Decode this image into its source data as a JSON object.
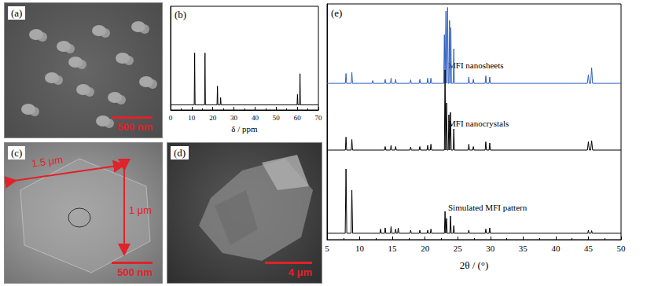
{
  "chart_data": [
    {
      "type": "line",
      "annotations": [
        "(b)"
      ],
      "x_label": "δ / ppm",
      "xlim": [
        0,
        70
      ],
      "xticks": [
        0,
        10,
        20,
        30,
        40,
        50,
        60,
        70
      ],
      "ylim": [
        0,
        1
      ],
      "tick_labels": "x",
      "grid": false,
      "series": [
        {
          "color": "#000000",
          "x": [
            0,
            11.2,
            11.4,
            11.6,
            16.1,
            16.3,
            16.5,
            22.0,
            22.2,
            22.4,
            23.5,
            23.7,
            23.9,
            59.9,
            60.1,
            60.3,
            61.1,
            61.3,
            61.5,
            70
          ],
          "values": [
            0.05,
            0.05,
            0.55,
            0.05,
            0.05,
            0.55,
            0.05,
            0.05,
            0.23,
            0.05,
            0.05,
            0.12,
            0.05,
            0.05,
            0.15,
            0.05,
            0.05,
            0.35,
            0.05,
            0.05
          ]
        }
      ]
    },
    {
      "type": "line",
      "annotations": [
        "(e)"
      ],
      "x_label": "2θ / (°)",
      "xlim": [
        5,
        50
      ],
      "xticks": [
        5,
        10,
        15,
        20,
        25,
        30,
        35,
        40,
        45,
        50
      ],
      "ylim": [
        0,
        100
      ],
      "tick_labels": "x",
      "grid": false,
      "series": [
        {
          "name": "MFI nanosheets",
          "color": "#2e5fbf",
          "x": [
            5,
            7.8,
            7.9,
            8.0,
            8.7,
            8.8,
            8.9,
            11.9,
            12.0,
            12.1,
            13.8,
            13.9,
            14.0,
            14.7,
            14.8,
            14.9,
            15.4,
            15.5,
            15.6,
            17.7,
            17.8,
            17.9,
            19.1,
            19.2,
            19.3,
            20.3,
            20.4,
            20.5,
            20.8,
            20.9,
            21.0,
            22.86,
            22.96,
            23.06,
            23.1,
            23.2,
            23.3,
            23.35,
            23.45,
            23.55,
            23.65,
            23.75,
            23.85,
            23.86,
            23.95,
            24.04,
            24.3,
            24.4,
            24.5,
            26.6,
            26.7,
            26.8,
            27.3,
            27.4,
            27.5,
            29.2,
            29.3,
            29.4,
            29.8,
            29.9,
            30.0,
            44.85,
            45.0,
            45.15,
            45.35,
            45.5,
            45.65,
            50
          ],
          "values": [
            66.3,
            66.3,
            70.5,
            66.3,
            66.3,
            71,
            66.3,
            66.3,
            67.5,
            66.3,
            66.3,
            68,
            66.3,
            66.3,
            68.5,
            66.3,
            66.3,
            68,
            66.3,
            66.3,
            67.8,
            66.3,
            66.3,
            68,
            66.3,
            66.3,
            68.5,
            66.3,
            66.3,
            68.5,
            66.3,
            66.3,
            87,
            66.3,
            66.3,
            97,
            66.3,
            66.3,
            98.5,
            66.3,
            66.3,
            93,
            66.3,
            66.3,
            90,
            66.3,
            66.3,
            81,
            66.3,
            66.3,
            69,
            66.3,
            66.3,
            68,
            66.3,
            66.3,
            69.5,
            66.3,
            66.3,
            69,
            66.3,
            66.3,
            70,
            66.3,
            66.3,
            73,
            66.3,
            66.3
          ]
        },
        {
          "name": "MFI nanocrystals",
          "color": "#000000",
          "x": [
            5,
            7.8,
            7.9,
            8.0,
            8.7,
            8.8,
            8.9,
            13.8,
            13.9,
            14.0,
            14.7,
            14.8,
            14.9,
            15.4,
            15.5,
            15.6,
            17.7,
            17.8,
            17.9,
            19.1,
            19.2,
            19.3,
            20.3,
            20.4,
            20.5,
            20.8,
            20.9,
            21.0,
            22.96,
            23.06,
            23.16,
            23.2,
            23.3,
            23.4,
            23.55,
            23.65,
            23.75,
            23.8,
            23.9,
            24.0,
            24.3,
            24.4,
            24.5,
            26.6,
            26.7,
            26.8,
            27.3,
            27.4,
            27.5,
            29.2,
            29.3,
            29.4,
            29.8,
            29.9,
            30.0,
            44.85,
            45.0,
            45.15,
            45.35,
            45.5,
            45.65,
            50
          ],
          "values": [
            38,
            38,
            43.5,
            38,
            38,
            42.5,
            38,
            38,
            39.5,
            38,
            38,
            40,
            38,
            38,
            39.5,
            38,
            38,
            39.3,
            38,
            38,
            39.5,
            38,
            38,
            40,
            38,
            38,
            40.5,
            38,
            38,
            72,
            38,
            38,
            58,
            38,
            38,
            53,
            38,
            38,
            54,
            38,
            38,
            47,
            38,
            38,
            40.5,
            38,
            38,
            39.5,
            38,
            38,
            41.5,
            38,
            38,
            41,
            38,
            38,
            41.5,
            38,
            38,
            42,
            38,
            38
          ]
        },
        {
          "name": "Simulated MFI pattern",
          "color": "#000000",
          "x": [
            5,
            7.78,
            7.9,
            8.02,
            8.68,
            8.8,
            8.92,
            13.1,
            13.2,
            13.3,
            13.8,
            13.9,
            14.0,
            14.7,
            14.8,
            14.9,
            15.4,
            15.5,
            15.6,
            15.8,
            15.9,
            16.0,
            17.7,
            17.8,
            17.9,
            19.1,
            19.2,
            19.3,
            20.3,
            20.4,
            20.5,
            20.8,
            20.9,
            21.0,
            22.96,
            23.06,
            23.16,
            23.22,
            23.3,
            23.38,
            23.8,
            23.9,
            24.0,
            24.3,
            24.4,
            24.5,
            26.6,
            26.7,
            26.8,
            29.2,
            29.3,
            29.4,
            29.8,
            29.9,
            30.0,
            44.9,
            45.0,
            45.1,
            45.4,
            45.5,
            45.6,
            50
          ],
          "values": [
            2.7,
            2.7,
            30,
            2.7,
            2.7,
            21,
            2.7,
            2.7,
            4.5,
            2.7,
            2.7,
            5,
            2.7,
            2.7,
            5.5,
            2.7,
            2.7,
            4.5,
            2.7,
            2.7,
            5,
            2.7,
            2.7,
            4,
            2.7,
            2.7,
            4,
            2.7,
            2.7,
            4,
            2.7,
            2.7,
            4.5,
            2.7,
            2.7,
            12,
            2.7,
            2.7,
            9,
            2.7,
            2.7,
            10,
            2.7,
            2.7,
            6,
            2.7,
            2.7,
            4,
            2.7,
            2.7,
            4.5,
            2.7,
            2.7,
            5,
            2.7,
            2.7,
            4,
            2.7,
            2.7,
            3.8,
            2.7,
            2.7
          ]
        }
      ]
    }
  ],
  "images": [
    {
      "label": "(a)",
      "scale_bar": "500 nm"
    },
    {
      "label": "(c)",
      "scale_bar": "500 nm",
      "dimensions": [
        "1.5 μm",
        "1 μm"
      ]
    },
    {
      "label": "(d)",
      "scale_bar": "4 μm"
    }
  ]
}
